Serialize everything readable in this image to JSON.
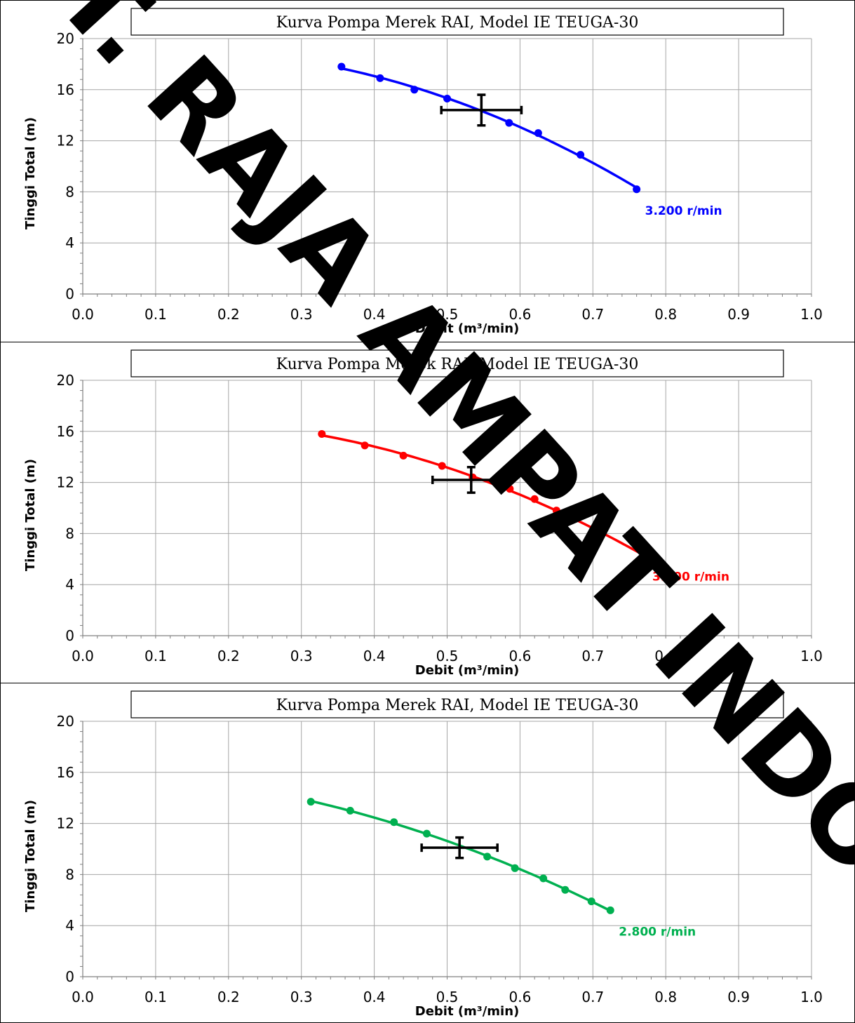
{
  "watermark": "PT. RAJA AMPAT INDOTIK",
  "chart_data": [
    {
      "type": "line",
      "title": "Kurva Pompa Merek RAI, Model IE TEUGA-30",
      "xlabel": "Debit (m³/min)",
      "ylabel": "Tinggi Total (m)",
      "xlim": [
        0.0,
        1.0
      ],
      "ylim": [
        0,
        20
      ],
      "x_ticks": [
        "0.0",
        "0.1",
        "0.2",
        "0.3",
        "0.4",
        "0.5",
        "0.6",
        "0.7",
        "0.8",
        "0.9",
        "1.0"
      ],
      "y_ticks": [
        "0",
        "4",
        "8",
        "12",
        "16",
        "20"
      ],
      "grid": true,
      "series": [
        {
          "name": "3.200 r/min",
          "color": "#0000ff",
          "x": [
            0.355,
            0.408,
            0.455,
            0.5,
            0.585,
            0.625,
            0.683,
            0.76
          ],
          "y": [
            17.8,
            16.9,
            16.0,
            15.3,
            13.4,
            12.6,
            10.9,
            8.2
          ]
        }
      ],
      "operating_point": {
        "x": 0.547,
        "y": 14.4,
        "x_err": 0.055,
        "y_err": 1.2
      }
    },
    {
      "type": "line",
      "title": "Kurva Pompa Merek RAI, Model IE TEUGA-30",
      "xlabel": "Debit (m³/min)",
      "ylabel": "Tinggi Total (m)",
      "xlim": [
        0.0,
        1.0
      ],
      "ylim": [
        0,
        20
      ],
      "x_ticks": [
        "0.0",
        "0.1",
        "0.2",
        "0.3",
        "0.4",
        "0.5",
        "0.6",
        "0.7",
        "0.8",
        "0.9",
        "1.0"
      ],
      "y_ticks": [
        "0",
        "4",
        "8",
        "12",
        "16",
        "20"
      ],
      "grid": true,
      "series": [
        {
          "name": "3.000 r/min",
          "color": "#ff0000",
          "x": [
            0.328,
            0.387,
            0.44,
            0.493,
            0.535,
            0.586,
            0.62,
            0.65,
            0.71,
            0.77
          ],
          "y": [
            15.8,
            14.9,
            14.1,
            13.3,
            12.4,
            11.5,
            10.7,
            9.8,
            8.0,
            6.3
          ]
        }
      ],
      "operating_point": {
        "x": 0.533,
        "y": 12.2,
        "x_err": 0.053,
        "y_err": 1.0
      }
    },
    {
      "type": "line",
      "title": "Kurva Pompa Merek RAI, Model IE TEUGA-30",
      "xlabel": "Debit (m³/min)",
      "ylabel": "Tinggi Total (m)",
      "xlim": [
        0.0,
        1.0
      ],
      "ylim": [
        0,
        20
      ],
      "x_ticks": [
        "0.0",
        "0.1",
        "0.2",
        "0.3",
        "0.4",
        "0.5",
        "0.6",
        "0.7",
        "0.8",
        "0.9",
        "1.0"
      ],
      "y_ticks": [
        "0",
        "4",
        "8",
        "12",
        "16",
        "20"
      ],
      "grid": true,
      "series": [
        {
          "name": "2.800 r/min",
          "color": "#00b050",
          "x": [
            0.313,
            0.367,
            0.427,
            0.472,
            0.555,
            0.593,
            0.632,
            0.662,
            0.698,
            0.724
          ],
          "y": [
            13.7,
            13.0,
            12.1,
            11.2,
            9.4,
            8.5,
            7.7,
            6.8,
            5.9,
            5.2
          ]
        }
      ],
      "operating_point": {
        "x": 0.517,
        "y": 10.1,
        "x_err": 0.052,
        "y_err": 0.8
      }
    }
  ]
}
